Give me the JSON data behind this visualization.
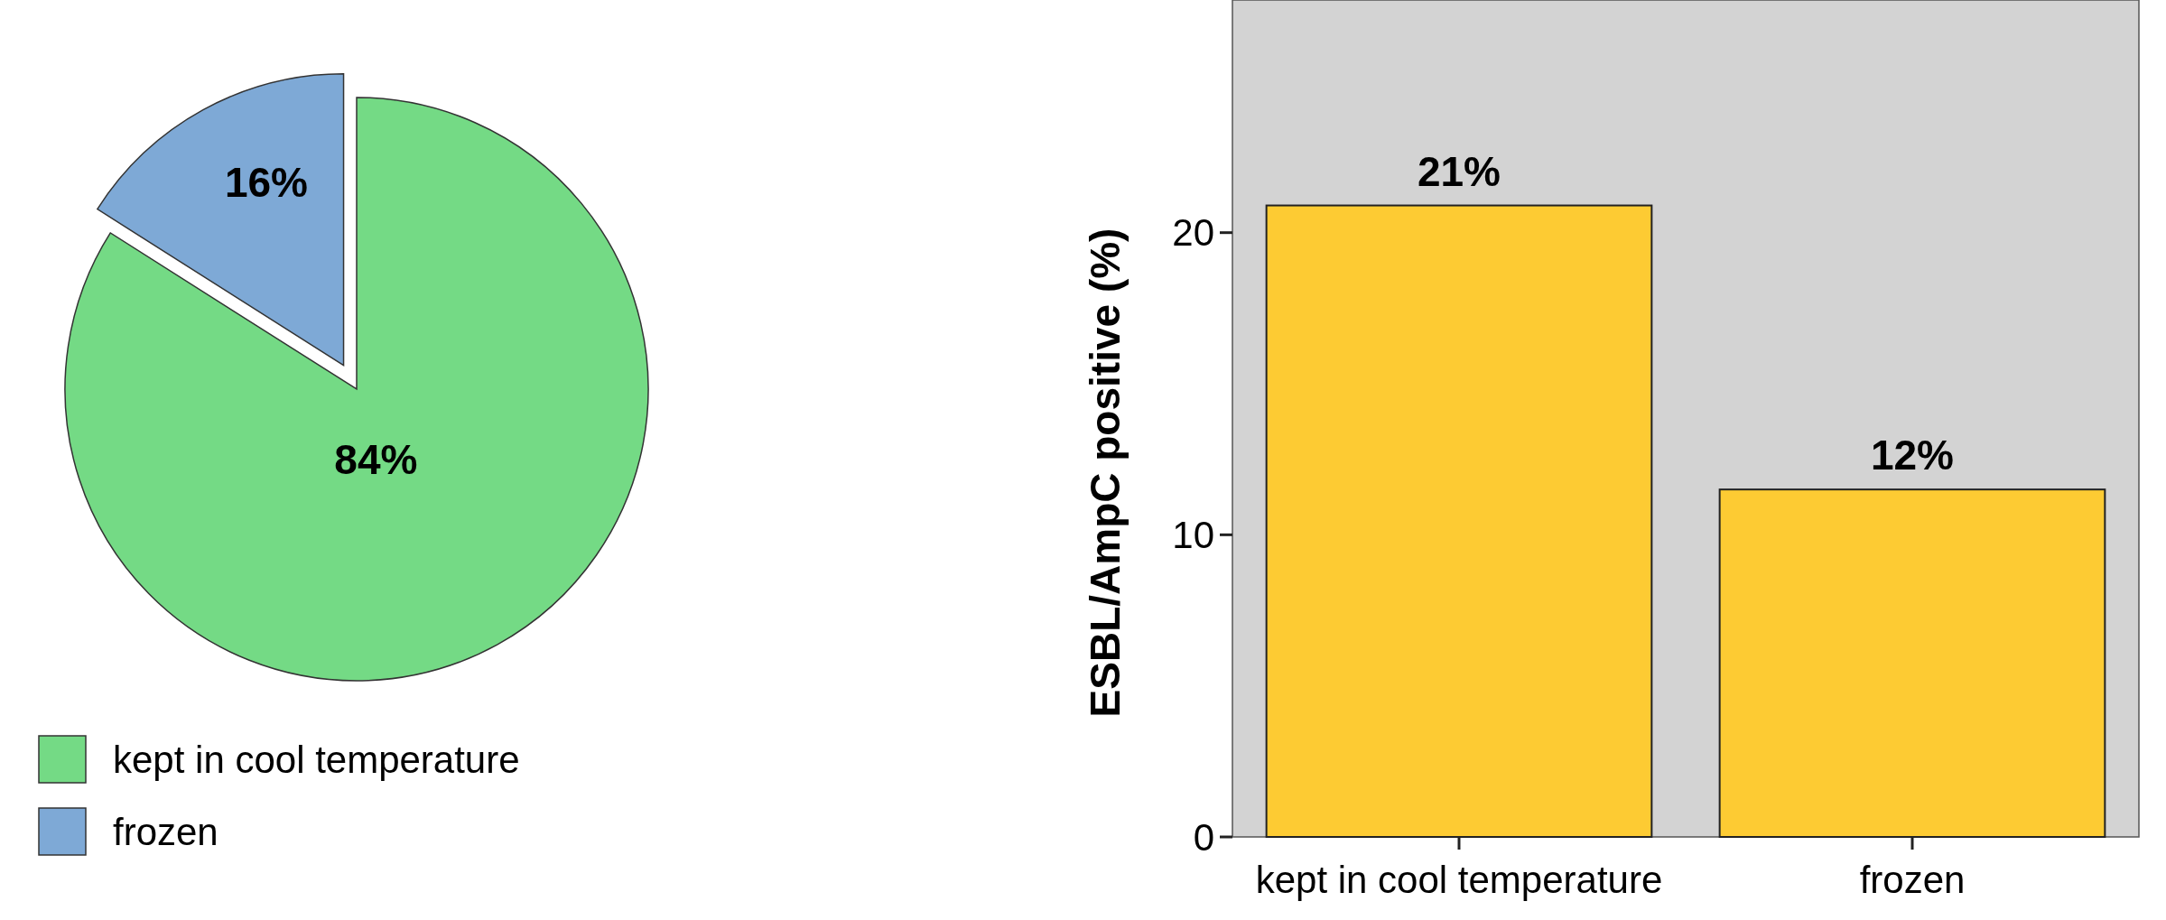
{
  "chart_data": [
    {
      "type": "pie",
      "categories": [
        "kept in cool temperature",
        "frozen"
      ],
      "values": [
        84,
        16
      ],
      "colors": [
        "#74da85",
        "#7ea9d6"
      ],
      "value_labels": [
        "84%",
        "16%"
      ],
      "legend": "bottom left"
    },
    {
      "type": "bar",
      "categories": [
        "kept in cool temperature",
        "frozen"
      ],
      "values": [
        20.9,
        11.5
      ],
      "value_labels": [
        "21%",
        "12%"
      ],
      "color": "#fdcb33",
      "ylabel": "ESBL/AmpC positive (%)",
      "ylim": [
        0,
        27.7
      ],
      "yticks": [
        0,
        10,
        20
      ]
    }
  ]
}
